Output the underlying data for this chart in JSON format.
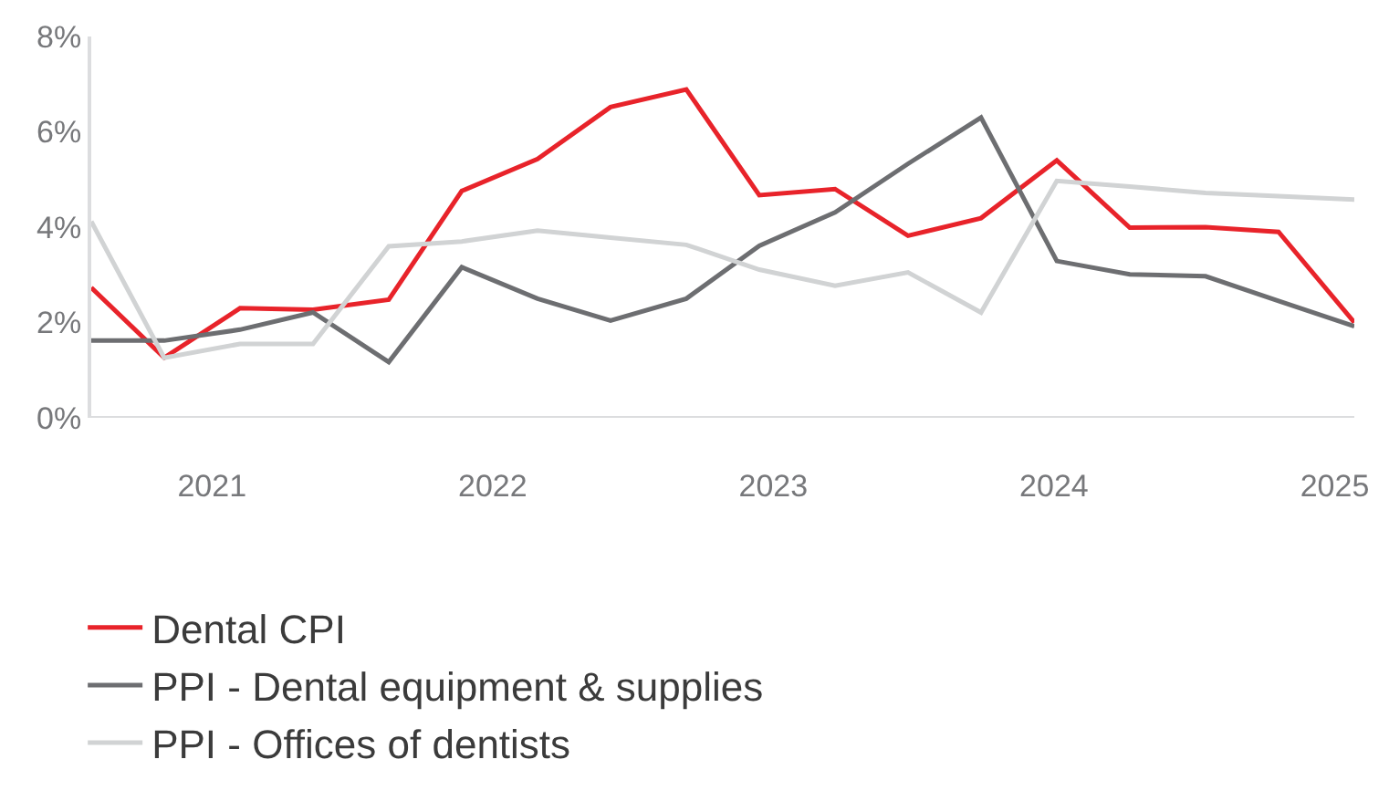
{
  "chart_data": {
    "type": "line",
    "x": [
      2020.57,
      2020.83,
      2021.1,
      2021.36,
      2021.63,
      2021.89,
      2022.16,
      2022.42,
      2022.69,
      2022.95,
      2023.22,
      2023.48,
      2023.74,
      2024.01,
      2024.27,
      2024.54,
      2024.8,
      2025.07
    ],
    "series": [
      {
        "name": "Dental CPI",
        "color": "#e8232a",
        "values": [
          2.73,
          1.26,
          2.3,
          2.27,
          2.48,
          4.76,
          5.43,
          6.52,
          6.89,
          4.67,
          4.8,
          3.82,
          4.19,
          5.4,
          3.99,
          4.0,
          3.9,
          2.0
        ]
      },
      {
        "name": "PPI - Dental equipment & supplies",
        "color": "#6d6e71",
        "values": [
          1.62,
          1.62,
          1.85,
          2.21,
          1.17,
          3.16,
          2.5,
          2.04,
          2.5,
          3.61,
          4.31,
          5.33,
          6.3,
          3.29,
          3.01,
          2.97,
          2.45,
          1.92
        ]
      },
      {
        "name": "PPI - Offices of dentists",
        "color": "#d1d3d4",
        "values": [
          4.12,
          1.26,
          1.55,
          1.55,
          3.6,
          3.7,
          3.93,
          3.78,
          3.63,
          3.11,
          2.77,
          3.05,
          2.21,
          4.97,
          4.85,
          4.72,
          4.65,
          4.58
        ]
      }
    ],
    "xlim": [
      2020.57,
      2025.07
    ],
    "xticks": [
      2021,
      2022,
      2023,
      2024,
      2025
    ],
    "ylim": [
      0,
      8
    ],
    "yticks": [
      {
        "value": 0,
        "label": "0%"
      },
      {
        "value": 2,
        "label": "2%"
      },
      {
        "value": 4,
        "label": "4%"
      },
      {
        "value": 6,
        "label": "6%"
      },
      {
        "value": 8,
        "label": "8%"
      }
    ],
    "grid": false,
    "legend": "bottom",
    "marker": "none",
    "line_style": "solid"
  }
}
